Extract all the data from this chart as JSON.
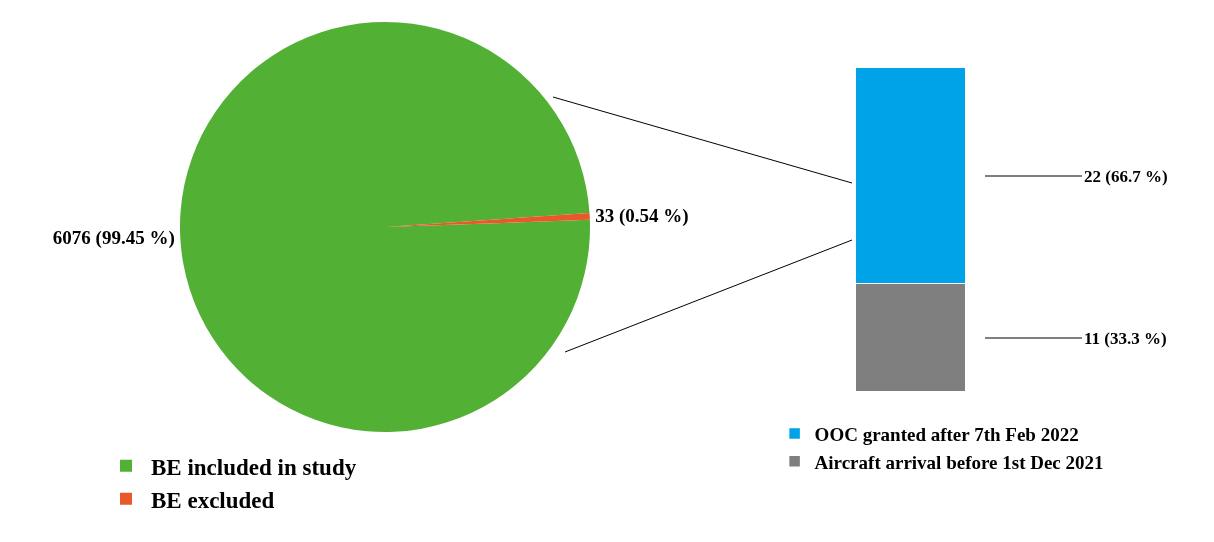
{
  "chart_data": [
    {
      "type": "pie",
      "categories": [
        "BE included in study",
        "BE excluded"
      ],
      "values": [
        6076,
        33
      ],
      "colors": [
        "#52b035",
        "#e8582a"
      ],
      "value_labels": [
        "6076 (99.45 %)",
        "33 (0.54 %)"
      ],
      "legend": "bottom left"
    },
    {
      "type": "bar",
      "stacked": true,
      "categories": [
        null
      ],
      "series": [
        {
          "name": "Aircraft arrival before 1st Dec 2021",
          "color": "#7f7f7f",
          "values": [
            11
          ],
          "value_labels": [
            "11 (33.3 %)"
          ]
        },
        {
          "name": "OOC granted after 7th Feb 2022",
          "color": "#00a2e8",
          "values": [
            22
          ],
          "value_labels": [
            "22 (66.7 %)"
          ]
        }
      ],
      "legend": "bottom"
    }
  ]
}
